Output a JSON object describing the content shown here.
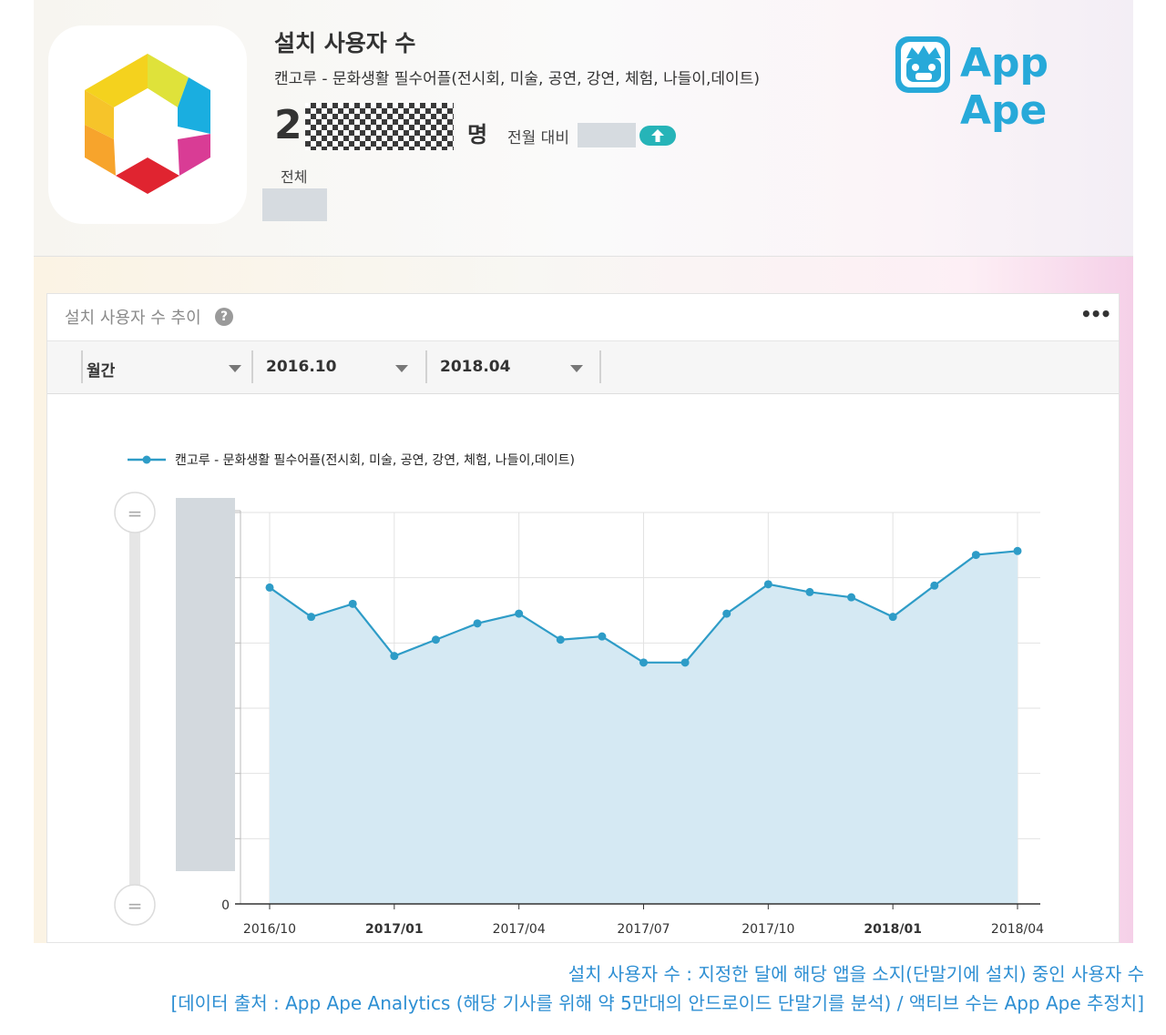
{
  "header": {
    "title": "설치 사용자 수",
    "app_name": "캔고루 - 문화생활 필수어플(전시회, 미술, 공연, 강연, 체험, 나들이,데이트)",
    "count_leading_digit": "2",
    "unit": "명",
    "compare_label": "전월 대비",
    "total_label": "전체"
  },
  "logo": {
    "text": "App Ape",
    "color": "#27a9d9"
  },
  "card": {
    "title": "설치 사용자 수 추이",
    "help_icon": "question-circle-icon",
    "more_icon": "more-dots-icon",
    "more_label": "•••"
  },
  "filters": {
    "period": "월간",
    "start": "2016.10",
    "end": "2018.04"
  },
  "chart_data": {
    "type": "area",
    "title": "",
    "xlabel": "",
    "ylabel": "",
    "legend_position": "top-left",
    "grid": true,
    "x": [
      "2016/10",
      "2016/11",
      "2016/12",
      "2017/01",
      "2017/02",
      "2017/03",
      "2017/04",
      "2017/05",
      "2017/06",
      "2017/07",
      "2017/08",
      "2017/09",
      "2017/10",
      "2017/11",
      "2017/12",
      "2018/01",
      "2018/02",
      "2018/03",
      "2018/04"
    ],
    "x_tick_labels": [
      "2016/10",
      "2017/01",
      "2017/04",
      "2017/07",
      "2017/10",
      "2018/01",
      "2018/04"
    ],
    "x_tick_bold": [
      "2017/01",
      "2018/01"
    ],
    "y_zero_label": "0",
    "y_tick_count": 7,
    "ylim": [
      0,
      6
    ],
    "series": [
      {
        "name": "캔고루 - 문화생활 필수어플(전시회, 미술, 공연, 강연, 체험, 나들이,데이트)",
        "color": "#2e9cc7",
        "fill": "#d5e9f3",
        "values": [
          4.85,
          4.4,
          4.6,
          3.8,
          4.05,
          4.3,
          4.45,
          4.05,
          4.1,
          3.7,
          3.7,
          4.45,
          4.9,
          4.78,
          4.7,
          4.4,
          4.88,
          5.35,
          5.41
        ]
      }
    ]
  },
  "caption": {
    "line1": "설치 사용자 수 : 지정한 달에 해당 앱을 소지(단말기에 설치) 중인 사용자 수",
    "line2": "[데이터 출처 : App Ape Analytics (해당 기사를 위해 약 5만대의 안드로이드 단말기를 분석) / 액티브 수는 App Ape 추정치]"
  }
}
